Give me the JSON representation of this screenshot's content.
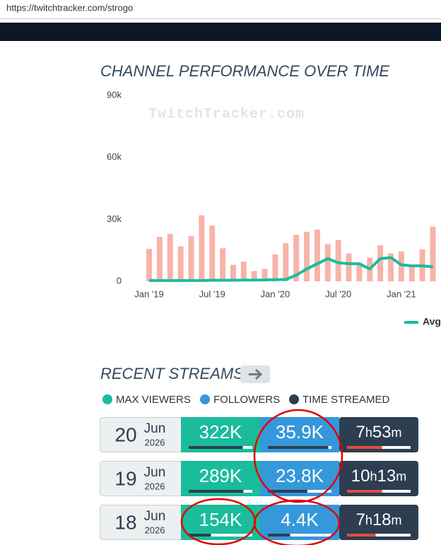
{
  "url": "https://twitchtracker.com/strogo",
  "chart_data": {
    "type": "bar",
    "title": "CHANNEL PERFORMANCE OVER TIME",
    "watermark": "TwitchTracker.com",
    "categories": [
      "Jan '19",
      null,
      null,
      null,
      null,
      null,
      "Jul '19",
      null,
      null,
      null,
      null,
      null,
      "Jan '20",
      null,
      null,
      null,
      null,
      null,
      "Jul '20",
      null,
      null,
      null,
      null,
      null,
      "Jan '21",
      null,
      null,
      null
    ],
    "series": [
      {
        "color": "#f8b3a9",
        "values": [
          15700,
          21500,
          23000,
          17000,
          22000,
          32000,
          27000,
          16000,
          8000,
          9500,
          5000,
          6000,
          13000,
          18500,
          22500,
          24000,
          25000,
          18000,
          20000,
          13500,
          9000,
          11500,
          17500,
          13500,
          14500,
          8000,
          15500,
          26500
        ]
      },
      {
        "name": "Avg",
        "type": "line",
        "color": "#1abc9c",
        "values": [
          400,
          400,
          400,
          400,
          400,
          400,
          500,
          500,
          500,
          600,
          600,
          700,
          800,
          900,
          3000,
          6000,
          8500,
          11000,
          9000,
          8500,
          8500,
          6000,
          11000,
          11500,
          8000,
          7500,
          7500,
          7000
        ]
      }
    ],
    "ylim": [
      0,
      90000
    ],
    "yticks": [
      0,
      {
        "value": 30000,
        "label": "30k"
      },
      {
        "value": 60000,
        "label": "60k"
      },
      {
        "value": 90000,
        "label": "90k"
      }
    ],
    "grid": false
  },
  "recent_streams": {
    "title": "RECENT STREAMS",
    "legend": [
      {
        "label": "MAX VIEWERS",
        "color": "#1abc9c"
      },
      {
        "label": "FOLLOWERS",
        "color": "#3498db"
      },
      {
        "label": "TIME STREAMED",
        "color": "#2c3e50"
      }
    ],
    "rows": [
      {
        "day": "20",
        "month": "Jun",
        "year": "2026",
        "max_viewers": "322K",
        "followers": "35.9K",
        "time": [
          "7",
          "h",
          "53",
          "m"
        ]
      },
      {
        "day": "19",
        "month": "Jun",
        "year": "2026",
        "max_viewers": "289K",
        "followers": "23.8K",
        "time": [
          "10",
          "h",
          "13",
          "m"
        ]
      },
      {
        "day": "18",
        "month": "Jun",
        "year": "2026",
        "max_viewers": "154K",
        "followers": "4.4K",
        "time": [
          "7",
          "h",
          "18",
          "m"
        ]
      }
    ]
  }
}
